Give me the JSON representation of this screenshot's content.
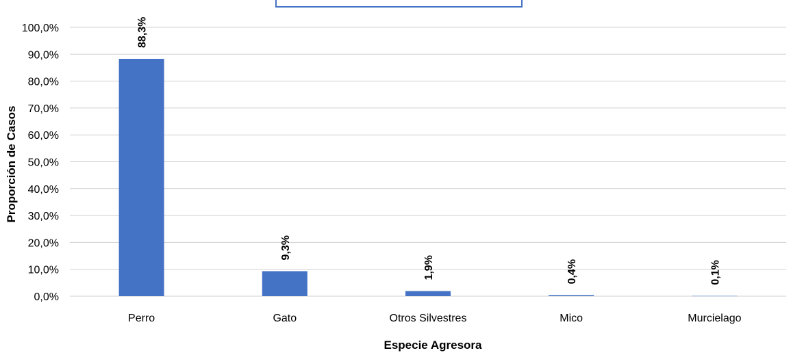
{
  "chart_data": {
    "type": "bar",
    "categories": [
      "Perro",
      "Gato",
      "Otros Silvestres",
      "Mico",
      "Murcielago"
    ],
    "values": [
      88.3,
      9.3,
      1.9,
      0.4,
      0.1
    ],
    "data_labels": [
      "88,3%",
      "9,3%",
      "1,9%",
      "0,4%",
      "0,1%"
    ],
    "yticks": [
      "0,0%",
      "10,0%",
      "20,0%",
      "30,0%",
      "40,0%",
      "50,0%",
      "60,0%",
      "70,0%",
      "80,0%",
      "90,0%",
      "100,0%"
    ],
    "ylim": [
      0,
      100
    ],
    "xlabel": "Especie Agresora",
    "ylabel": "Proporción de Casos",
    "grid": true,
    "bar_color": "#4472c4"
  }
}
